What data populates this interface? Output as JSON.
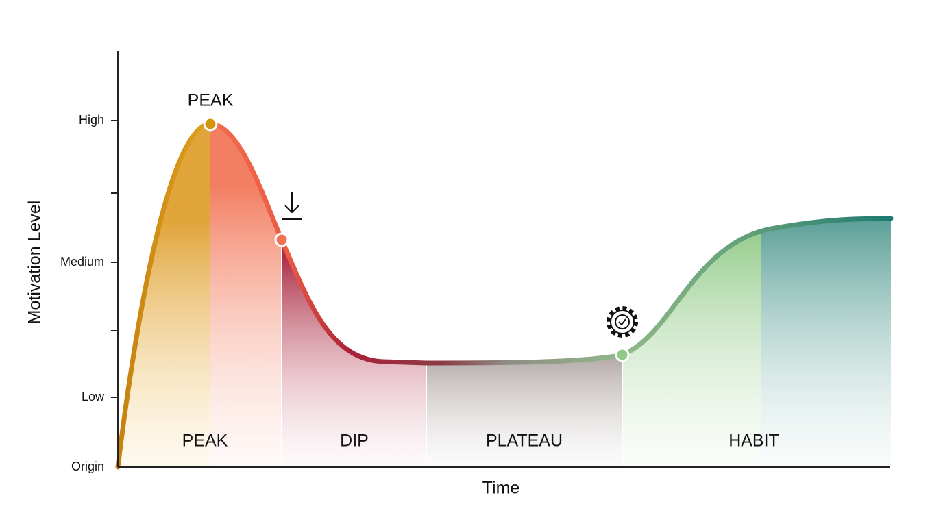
{
  "y_axis": {
    "label": "Motivation Level",
    "ticks": [
      "Origin",
      "Low",
      "Medium",
      "High"
    ]
  },
  "x_axis": {
    "label": "Time"
  },
  "annotation": "PEAK",
  "phases": [
    "PEAK",
    "DIP",
    "PLATEAU",
    "HABIT"
  ]
}
